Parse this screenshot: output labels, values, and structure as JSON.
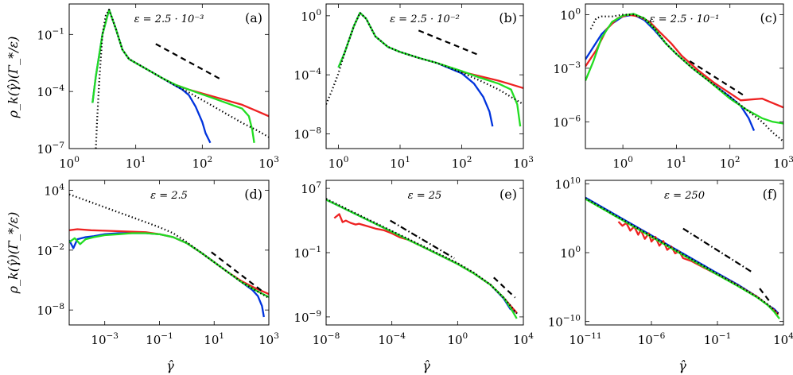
{
  "figure": {
    "ylabel": "ρ_k(γ̂)(Γ_*/ε)",
    "xlabel": "γ̂"
  },
  "chart_data": [
    {
      "panel": "(a)",
      "type": "line",
      "epsilon_label": "ε = 2.5 · 10⁻³",
      "xscale": "log",
      "yscale": "log",
      "xlim_exp": [
        0,
        3
      ],
      "ylim_exp": [
        -7,
        0.6
      ],
      "xticks": [
        0,
        1,
        2,
        3
      ],
      "yticks": [
        -1,
        -4,
        -7
      ],
      "series": [
        {
          "color": "#0033dd",
          "x_exp": [
            0.35,
            0.4,
            0.5,
            0.6,
            0.7,
            0.8,
            0.9,
            1.0,
            1.2,
            1.4,
            1.6,
            1.7,
            1.8,
            1.9,
            2.0,
            2.05,
            2.12
          ],
          "y_exp": [
            -4.6,
            -3.2,
            -1.0,
            0.3,
            -0.7,
            -1.8,
            -2.3,
            -2.5,
            -2.9,
            -3.3,
            -3.7,
            -3.9,
            -4.2,
            -4.8,
            -5.6,
            -6.2,
            -6.7
          ]
        },
        {
          "color": "#ee2222",
          "x_exp": [
            1.6,
            1.8,
            2.0,
            2.2,
            2.4,
            2.6,
            2.8,
            3.0
          ],
          "y_exp": [
            -3.65,
            -3.9,
            -4.1,
            -4.3,
            -4.5,
            -4.7,
            -5.0,
            -5.3
          ]
        },
        {
          "color": "#22dd22",
          "x_exp": [
            0.35,
            0.4,
            0.5,
            0.6,
            0.7,
            0.8,
            0.9,
            1.0,
            1.2,
            1.4,
            1.6,
            1.8,
            2.0,
            2.2,
            2.4,
            2.6,
            2.7,
            2.75,
            2.78
          ],
          "y_exp": [
            -4.6,
            -3.2,
            -1.0,
            0.3,
            -0.7,
            -1.8,
            -2.3,
            -2.5,
            -2.9,
            -3.3,
            -3.65,
            -3.9,
            -4.15,
            -4.4,
            -4.65,
            -4.9,
            -5.3,
            -6.0,
            -6.7
          ]
        },
        {
          "color": "#000000",
          "style": "dotted",
          "x_exp": [
            0.4,
            0.42,
            0.45,
            0.5,
            0.55,
            0.6,
            0.7,
            0.8,
            0.9,
            1.0,
            1.2,
            1.4,
            1.6,
            1.8,
            2.0,
            2.2,
            2.4,
            2.6,
            2.8,
            3.0
          ],
          "y_exp": [
            -7.0,
            -5.5,
            -3.5,
            -1.0,
            0.0,
            0.3,
            -0.7,
            -1.8,
            -2.3,
            -2.5,
            -2.9,
            -3.3,
            -3.7,
            -4.05,
            -4.45,
            -4.85,
            -5.25,
            -5.65,
            -6.0,
            -6.4
          ]
        },
        {
          "color": "#000000",
          "style": "dashed",
          "x_exp": [
            1.3,
            2.3
          ],
          "y_exp": [
            -1.5,
            -3.4
          ]
        }
      ]
    },
    {
      "panel": "(b)",
      "type": "line",
      "epsilon_label": "ε = 2.5 · 10⁻²",
      "xscale": "log",
      "yscale": "log",
      "xlim_exp": [
        -0.2,
        3
      ],
      "ylim_exp": [
        -9,
        0.8
      ],
      "xticks": [
        0,
        1,
        2,
        3
      ],
      "yticks": [
        0,
        -4,
        -8
      ],
      "series": [
        {
          "color": "#0033dd",
          "x_exp": [
            0.0,
            0.1,
            0.25,
            0.35,
            0.45,
            0.6,
            0.8,
            1.0,
            1.3,
            1.6,
            2.0,
            2.2,
            2.35,
            2.45,
            2.5
          ],
          "y_exp": [
            -3.5,
            -2.5,
            -0.7,
            0.2,
            -0.2,
            -1.4,
            -2.1,
            -2.45,
            -2.85,
            -3.2,
            -3.9,
            -4.6,
            -5.5,
            -6.5,
            -7.5
          ]
        },
        {
          "color": "#ee2222",
          "x_exp": [
            2.0,
            2.2,
            2.4,
            2.6,
            2.8,
            3.0
          ],
          "y_exp": [
            -3.8,
            -4.0,
            -4.2,
            -4.4,
            -4.65,
            -4.9
          ]
        },
        {
          "color": "#22dd22",
          "x_exp": [
            0.0,
            0.1,
            0.25,
            0.35,
            0.45,
            0.6,
            0.8,
            1.0,
            1.3,
            1.6,
            2.0,
            2.3,
            2.6,
            2.8,
            2.9,
            2.95
          ],
          "y_exp": [
            -3.5,
            -2.5,
            -0.7,
            0.2,
            -0.2,
            -1.4,
            -2.1,
            -2.45,
            -2.85,
            -3.2,
            -3.75,
            -4.2,
            -4.6,
            -5.0,
            -6.0,
            -7.5
          ]
        },
        {
          "color": "#000000",
          "style": "dotted",
          "x_exp": [
            -0.2,
            -0.1,
            0.0,
            0.1,
            0.25,
            0.35,
            0.45,
            0.6,
            0.8,
            1.0,
            1.3,
            1.6,
            2.0,
            2.3,
            2.6,
            2.8,
            3.0
          ],
          "y_exp": [
            -6.0,
            -5.0,
            -3.9,
            -2.5,
            -0.7,
            0.2,
            -0.2,
            -1.4,
            -2.1,
            -2.45,
            -2.85,
            -3.2,
            -3.85,
            -4.4,
            -5.0,
            -5.5,
            -6.0
          ]
        },
        {
          "color": "#000000",
          "style": "dashed",
          "x_exp": [
            1.3,
            2.3
          ],
          "y_exp": [
            -1.0,
            -2.7
          ]
        }
      ]
    },
    {
      "panel": "(c)",
      "type": "line",
      "epsilon_label": "ε = 2.5 · 10⁻¹",
      "xscale": "log",
      "yscale": "log",
      "xlim_exp": [
        -0.7,
        3
      ],
      "ylim_exp": [
        -7.5,
        0.6
      ],
      "xticks": [
        0,
        1,
        2,
        3
      ],
      "yticks": [
        0,
        -3,
        -6
      ],
      "series": [
        {
          "color": "#0033dd",
          "x_exp": [
            -0.7,
            -0.4,
            -0.2,
            0.0,
            0.2,
            0.4,
            0.6,
            0.8,
            1.0,
            1.3,
            1.6,
            2.0,
            2.2,
            2.35,
            2.45
          ],
          "y_exp": [
            -2.5,
            -1.1,
            -0.5,
            -0.1,
            0.0,
            -0.3,
            -0.9,
            -1.6,
            -2.2,
            -3.0,
            -3.7,
            -4.6,
            -5.1,
            -5.8,
            -6.5
          ]
        },
        {
          "color": "#ee2222",
          "x_exp": [
            -0.7,
            -0.5,
            -0.3,
            -0.1,
            0.1,
            0.3,
            0.5,
            0.7,
            0.9,
            1.1,
            1.4,
            1.7,
            2.0,
            2.2,
            2.4,
            2.6,
            2.8,
            3.0
          ],
          "y_exp": [
            -2.9,
            -2.0,
            -0.8,
            -0.2,
            0.0,
            -0.1,
            -0.4,
            -1.0,
            -1.6,
            -2.3,
            -3.1,
            -3.8,
            -4.4,
            -4.8,
            -4.75,
            -4.7,
            -4.95,
            -5.2
          ]
        },
        {
          "color": "#22dd22",
          "x_exp": [
            -0.7,
            -0.55,
            -0.4,
            -0.2,
            0.0,
            0.2,
            0.4,
            0.6,
            0.8,
            1.0,
            1.3,
            1.6,
            2.0,
            2.3,
            2.6,
            2.8,
            3.0
          ],
          "y_exp": [
            -3.7,
            -2.6,
            -1.3,
            -0.4,
            -0.05,
            0.05,
            -0.2,
            -0.8,
            -1.6,
            -2.2,
            -3.0,
            -3.7,
            -4.7,
            -5.3,
            -5.8,
            -6.0,
            -6.1
          ]
        },
        {
          "color": "#000000",
          "style": "dotted",
          "x_exp": [
            -0.6,
            -0.5,
            -0.4,
            -0.2,
            0.0,
            0.2,
            0.4,
            0.6,
            0.8,
            1.0,
            1.3,
            1.6,
            2.0,
            2.3,
            2.6,
            2.8,
            3.0
          ],
          "y_exp": [
            -0.8,
            -0.2,
            -0.1,
            -0.1,
            0.0,
            0.0,
            -0.2,
            -0.8,
            -1.6,
            -2.2,
            -3.0,
            -3.7,
            -4.6,
            -5.3,
            -6.0,
            -6.6,
            -7.1
          ]
        },
        {
          "color": "#000000",
          "style": "dashed",
          "x_exp": [
            1.25,
            2.3
          ],
          "y_exp": [
            -2.6,
            -4.6
          ]
        }
      ]
    },
    {
      "panel": "(d)",
      "type": "line",
      "epsilon_label": "ε = 2.5",
      "xscale": "log",
      "yscale": "log",
      "xlim_exp": [
        -4.3,
        3
      ],
      "ylim_exp": [
        -9.5,
        5
      ],
      "xticks": [
        -3,
        -1,
        1,
        3
      ],
      "yticks": [
        4,
        -2,
        -8
      ],
      "series": [
        {
          "color": "#0033dd",
          "x_exp": [
            -4.3,
            -4.15,
            -4.0,
            -3.7,
            -3.4,
            -3.0,
            -2.5,
            -2.0,
            -1.5,
            -1.0,
            -0.5,
            0.0,
            0.5,
            1.0,
            1.5,
            2.0,
            2.4,
            2.6,
            2.75,
            2.82
          ],
          "y_exp": [
            -1.0,
            -1.8,
            -0.9,
            -0.7,
            -0.6,
            -0.4,
            -0.3,
            -0.3,
            -0.3,
            -0.4,
            -0.7,
            -1.3,
            -2.2,
            -3.2,
            -4.2,
            -5.2,
            -6.0,
            -6.6,
            -7.6,
            -8.7
          ]
        },
        {
          "color": "#ee2222",
          "x_exp": [
            -4.3,
            -4.0,
            -3.5,
            -3.0,
            -2.5,
            -2.0,
            -1.5,
            -1.0,
            -0.5,
            0.0,
            0.5,
            1.0,
            1.5,
            2.0,
            2.5,
            3.0
          ],
          "y_exp": [
            0.0,
            0.1,
            0.0,
            -0.05,
            -0.1,
            -0.15,
            -0.2,
            -0.4,
            -0.7,
            -1.3,
            -2.2,
            -3.2,
            -4.2,
            -5.1,
            -5.8,
            -6.4
          ]
        },
        {
          "color": "#22dd22",
          "x_exp": [
            -4.3,
            -4.1,
            -3.9,
            -3.7,
            -3.4,
            -3.0,
            -2.5,
            -2.0,
            -1.5,
            -1.0,
            -0.5,
            0.0,
            0.5,
            1.0,
            1.5,
            2.0,
            2.5,
            3.0
          ],
          "y_exp": [
            -1.2,
            -0.8,
            -1.4,
            -0.9,
            -0.7,
            -0.5,
            -0.4,
            -0.3,
            -0.3,
            -0.4,
            -0.7,
            -1.3,
            -2.2,
            -3.2,
            -4.2,
            -5.2,
            -6.0,
            -6.7
          ]
        },
        {
          "color": "#000000",
          "style": "dotted",
          "x_exp": [
            -4.3,
            -3.5,
            -3.0,
            -2.5,
            -2.0,
            -1.5,
            -1.0,
            -0.5,
            0.0,
            0.5,
            1.0,
            1.5,
            2.0,
            2.5,
            3.0
          ],
          "y_exp": [
            3.6,
            2.8,
            2.3,
            1.8,
            1.3,
            0.8,
            0.3,
            -0.3,
            -1.2,
            -2.2,
            -3.2,
            -4.2,
            -5.2,
            -6.0,
            -6.8
          ]
        },
        {
          "color": "#000000",
          "style": "dashed",
          "x_exp": [
            0.9,
            2.8
          ],
          "y_exp": [
            -2.2,
            -6.2
          ]
        }
      ]
    },
    {
      "panel": "(e)",
      "type": "line",
      "epsilon_label": "ε = 25",
      "xscale": "log",
      "yscale": "log",
      "xlim_exp": [
        -8,
        4
      ],
      "ylim_exp": [
        -10,
        8
      ],
      "xticks": [
        -8,
        -4,
        0,
        4
      ],
      "yticks": [
        7,
        -1,
        -9
      ],
      "series": [
        {
          "color": "#0033dd",
          "x_exp": [
            -8,
            -6,
            -4,
            -2,
            0,
            1,
            2,
            2.8,
            3.2,
            3.5
          ],
          "y_exp": [
            5.6,
            3.6,
            1.6,
            -0.4,
            -2.4,
            -3.6,
            -5.0,
            -6.7,
            -8.0,
            -8.4
          ]
        },
        {
          "color": "#ee2222",
          "x_exp": [
            -7.5,
            -7.2,
            -7.0,
            -6.8,
            -6.5,
            -6.2,
            -6.0,
            -5.5,
            -5.0,
            -4.5,
            -4.0,
            -3.5,
            -3.0,
            -2.0,
            -1.0,
            0.0,
            1.0,
            2.0,
            2.8,
            3.3,
            3.6
          ],
          "y_exp": [
            3.3,
            3.8,
            2.8,
            3.0,
            2.7,
            2.5,
            2.6,
            2.3,
            2.0,
            1.8,
            1.4,
            0.9,
            0.6,
            -0.4,
            -1.4,
            -2.4,
            -3.6,
            -5.0,
            -6.6,
            -7.8,
            -8.5
          ]
        },
        {
          "color": "#22dd22",
          "x_exp": [
            -8,
            -6,
            -4,
            -2,
            0,
            1,
            2,
            2.8,
            3.2,
            3.6
          ],
          "y_exp": [
            5.6,
            3.6,
            1.6,
            -0.4,
            -2.4,
            -3.6,
            -5.0,
            -6.6,
            -7.8,
            -9.2
          ]
        },
        {
          "color": "#000000",
          "style": "dotted",
          "x_exp": [
            -8,
            -6,
            -4,
            -2,
            0,
            1,
            2,
            2.8,
            3.3,
            3.7
          ],
          "y_exp": [
            5.7,
            3.7,
            1.7,
            -0.3,
            -2.3,
            -3.5,
            -5.0,
            -6.6,
            -7.8,
            -8.8
          ]
        },
        {
          "color": "#000000",
          "style": "dashdot",
          "x_exp": [
            -4.1,
            -0.2
          ],
          "y_exp": [
            3.0,
            -1.7
          ]
        },
        {
          "color": "#000000",
          "style": "dashed",
          "x_exp": [
            2.2,
            3.5
          ],
          "y_exp": [
            -4.1,
            -6.6
          ]
        }
      ]
    },
    {
      "panel": "(f)",
      "type": "line",
      "epsilon_label": "ε = 250",
      "xscale": "log",
      "yscale": "log",
      "xlim_exp": [
        -11,
        4
      ],
      "ylim_exp": [
        -10.5,
        10.5
      ],
      "xticks": [
        -11,
        -6,
        -1,
        4
      ],
      "yticks": [
        10,
        0,
        -10
      ],
      "series": [
        {
          "color": "#0033dd",
          "x_exp": [
            -11,
            -9,
            -7,
            -5,
            -3,
            -1,
            0.5,
            2,
            2.8,
            3.3,
            3.6
          ],
          "y_exp": [
            8.0,
            5.8,
            3.6,
            1.4,
            -0.8,
            -3.0,
            -4.6,
            -6.4,
            -7.6,
            -8.2,
            -8.8
          ]
        },
        {
          "color": "#ee2222",
          "x_exp": [
            -8.5,
            -8.2,
            -7.9,
            -7.6,
            -7.3,
            -7.0,
            -6.8,
            -6.5,
            -6.2,
            -6.0,
            -5.7,
            -5.4,
            -5.1,
            -4.8,
            -4.5,
            -4.2,
            -3.9,
            -3.6,
            -3.0,
            -2.0,
            -1.0,
            0.0,
            1.0,
            2.0,
            2.8,
            3.3,
            3.6
          ],
          "y_exp": [
            4.5,
            3.9,
            4.3,
            3.2,
            3.8,
            2.6,
            3.3,
            2.0,
            2.8,
            1.6,
            2.3,
            1.0,
            1.7,
            0.4,
            0.9,
            -0.1,
            0.2,
            -0.8,
            -1.2,
            -2.2,
            -3.2,
            -4.2,
            -5.3,
            -6.4,
            -7.6,
            -8.4,
            -9.0
          ]
        },
        {
          "color": "#22dd22",
          "x_exp": [
            -11,
            -9,
            -7,
            -5,
            -3,
            -1,
            0.5,
            2,
            2.8,
            3.3,
            3.7
          ],
          "y_exp": [
            7.8,
            5.6,
            3.4,
            1.2,
            -1.0,
            -3.2,
            -4.8,
            -6.5,
            -7.6,
            -8.6,
            -9.6
          ]
        },
        {
          "color": "#000000",
          "style": "dotted",
          "x_exp": [
            -11,
            -9,
            -7,
            -5,
            -3,
            -1,
            0.5,
            2,
            2.8,
            3.3,
            3.7
          ],
          "y_exp": [
            7.9,
            5.7,
            3.5,
            1.3,
            -0.9,
            -3.1,
            -4.7,
            -6.4,
            -7.5,
            -8.3,
            -9.0
          ]
        },
        {
          "color": "#000000",
          "style": "dashdot",
          "x_exp": [
            -3.6,
            1.6
          ],
          "y_exp": [
            3.5,
            -2.8
          ]
        },
        {
          "color": "#000000",
          "style": "dashed",
          "x_exp": [
            2.2,
            3.0
          ],
          "y_exp": [
            -5.2,
            -7.2
          ]
        }
      ]
    }
  ]
}
